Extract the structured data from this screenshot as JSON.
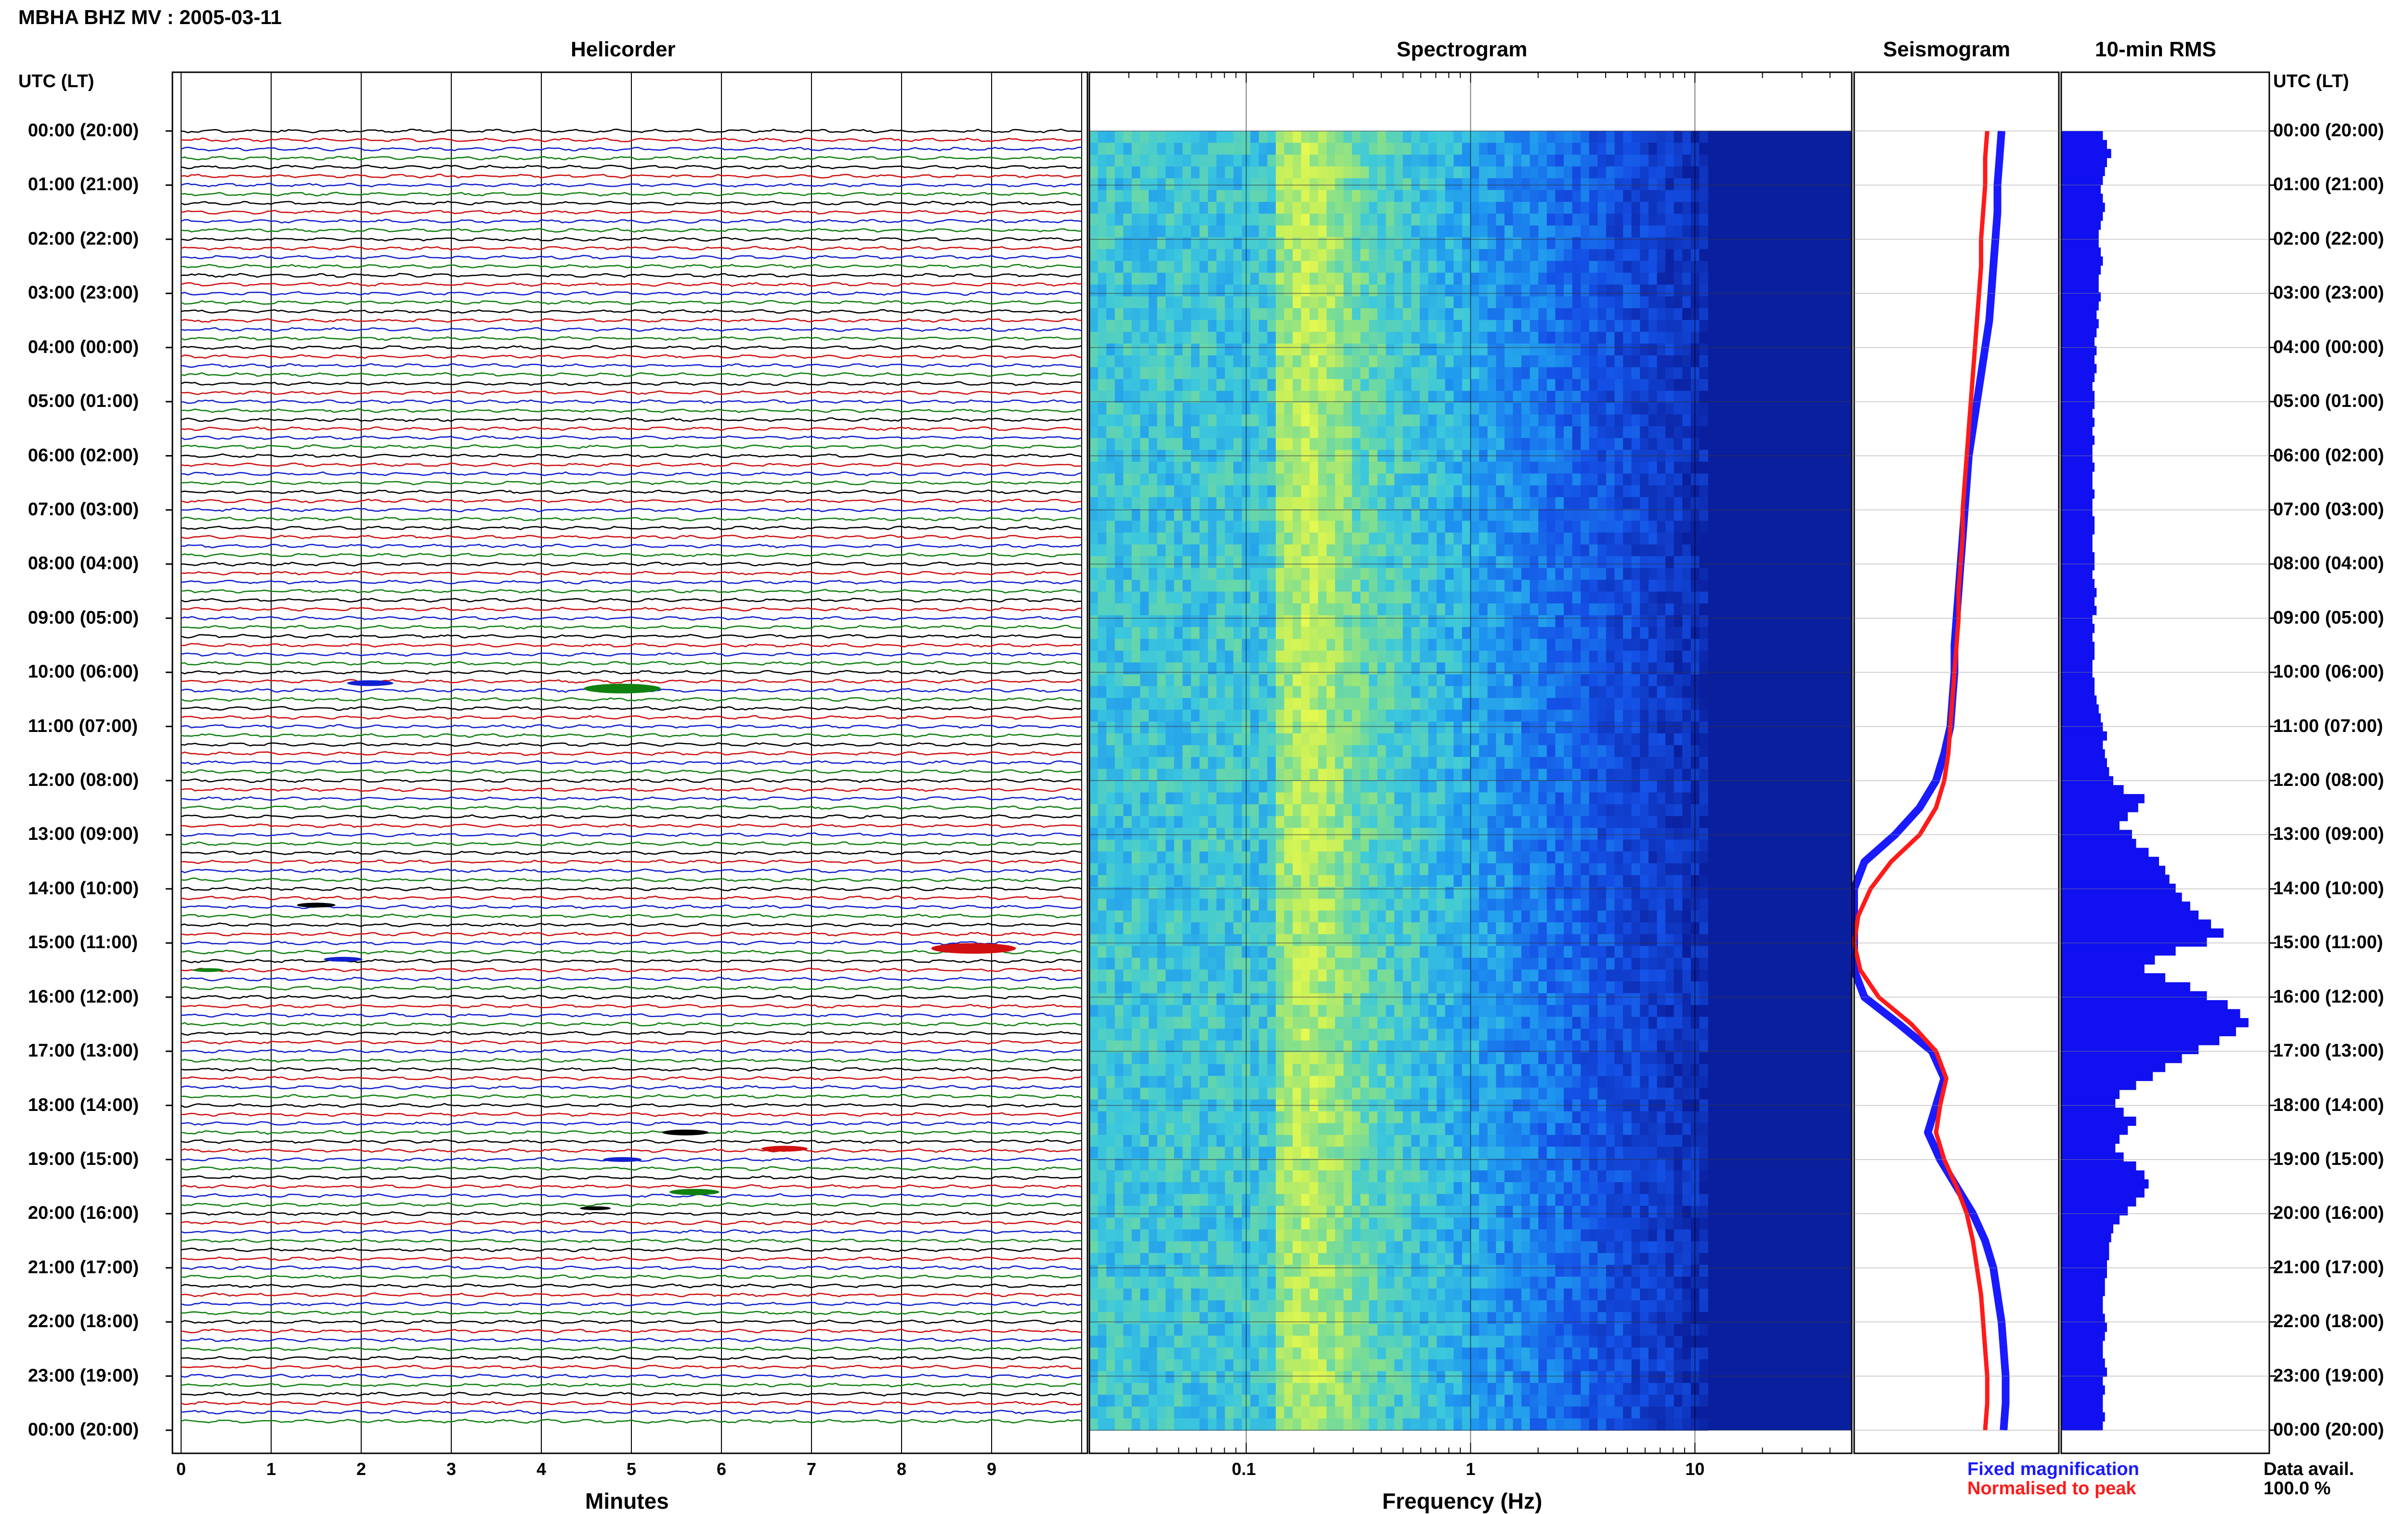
{
  "title": "MBHA BHZ MV : 2005-03-11",
  "panels": {
    "helicorder": "Helicorder",
    "spectrogram": "Spectrogram",
    "seismogram": "Seismogram",
    "rms": "10-min RMS"
  },
  "utc_header_left": "UTC (LT)",
  "utc_header_right": "UTC (LT)",
  "hour_labels": [
    "00:00 (20:00)",
    "01:00 (21:00)",
    "02:00 (22:00)",
    "03:00 (23:00)",
    "04:00 (00:00)",
    "05:00 (01:00)",
    "06:00 (02:00)",
    "07:00 (03:00)",
    "08:00 (04:00)",
    "09:00 (05:00)",
    "10:00 (06:00)",
    "11:00 (07:00)",
    "12:00 (08:00)",
    "13:00 (09:00)",
    "14:00 (10:00)",
    "15:00 (11:00)",
    "16:00 (12:00)",
    "17:00 (13:00)",
    "18:00 (14:00)",
    "19:00 (15:00)",
    "20:00 (16:00)",
    "21:00 (17:00)",
    "22:00 (18:00)",
    "23:00 (19:00)",
    "00:00 (20:00)"
  ],
  "helicorder_axis": {
    "label": "Minutes",
    "ticks": [
      "0",
      "1",
      "2",
      "3",
      "4",
      "5",
      "6",
      "7",
      "8",
      "9"
    ]
  },
  "spectrogram_axis": {
    "label": "Frequency (Hz)",
    "ticks": [
      "0.1",
      "1",
      "10"
    ]
  },
  "legend": {
    "fixed": "Fixed magnification",
    "normalised": "Normalised to peak",
    "fixed_color": "#1a1aff",
    "normalised_color": "#ff1a1a"
  },
  "data_avail": {
    "label": "Data avail.",
    "value": "100.0 %"
  },
  "colors": {
    "trace_cycle": [
      "#000000",
      "#d01010",
      "#1020d0",
      "#108010"
    ],
    "rms_fill": "#1010f0",
    "spectrogram_dark": "#0a1f9e"
  },
  "chart_data": [
    {
      "type": "heatmap",
      "name": "helicorder",
      "xlabel": "Minutes",
      "xlim": [
        0,
        10
      ],
      "ylim_hours": [
        0,
        24
      ],
      "rows_per_hour": 6,
      "events": [
        {
          "hour": 10.2,
          "minute": 2.1,
          "size": 1.2
        },
        {
          "hour": 10.3,
          "minute": 4.9,
          "size": 2.0
        },
        {
          "hour": 14.3,
          "minute": 1.5,
          "size": 1.0
        },
        {
          "hour": 15.1,
          "minute": 8.8,
          "size": 2.2
        },
        {
          "hour": 15.3,
          "minute": 1.8,
          "size": 1.0
        },
        {
          "hour": 15.5,
          "minute": 0.3,
          "size": 0.8
        },
        {
          "hour": 18.5,
          "minute": 5.6,
          "size": 1.2
        },
        {
          "hour": 18.8,
          "minute": 6.7,
          "size": 1.2
        },
        {
          "hour": 19.0,
          "minute": 4.9,
          "size": 1.0
        },
        {
          "hour": 19.6,
          "minute": 5.7,
          "size": 1.3
        },
        {
          "hour": 19.9,
          "minute": 4.6,
          "size": 0.8
        }
      ]
    },
    {
      "type": "heatmap",
      "name": "spectrogram",
      "xlabel": "Frequency (Hz)",
      "xscale": "log",
      "xlim": [
        0.02,
        50
      ],
      "ylim_hours": [
        0,
        24
      ]
    },
    {
      "type": "line",
      "name": "seismogram",
      "x": [
        0,
        0.5,
        1,
        1.5,
        2,
        2.5,
        3,
        3.5,
        4,
        4.5,
        5,
        5.5,
        6,
        6.5,
        7,
        7.5,
        8,
        8.5,
        9,
        9.5,
        10,
        10.5,
        11,
        11.5,
        12,
        12.5,
        13,
        13.5,
        14,
        14.5,
        15,
        15.5,
        16,
        16.5,
        17,
        17.5,
        18,
        18.5,
        19,
        19.5,
        20,
        20.5,
        21,
        21.5,
        22,
        22.5,
        23,
        23.5,
        24
      ],
      "series": [
        {
          "name": "Fixed magnification",
          "values": [
            0.72,
            0.71,
            0.7,
            0.7,
            0.69,
            0.68,
            0.67,
            0.66,
            0.64,
            0.62,
            0.6,
            0.58,
            0.56,
            0.55,
            0.54,
            0.53,
            0.52,
            0.51,
            0.5,
            0.49,
            0.49,
            0.48,
            0.47,
            0.44,
            0.4,
            0.32,
            0.2,
            0.05,
            0.0,
            0.0,
            0.0,
            0.0,
            0.05,
            0.22,
            0.38,
            0.44,
            0.4,
            0.36,
            0.42,
            0.5,
            0.58,
            0.64,
            0.68,
            0.7,
            0.72,
            0.73,
            0.74,
            0.74,
            0.73
          ]
        },
        {
          "name": "Normalised to peak",
          "values": [
            0.65,
            0.64,
            0.64,
            0.63,
            0.62,
            0.62,
            0.61,
            0.6,
            0.59,
            0.58,
            0.57,
            0.56,
            0.55,
            0.54,
            0.53,
            0.53,
            0.52,
            0.51,
            0.51,
            0.5,
            0.49,
            0.48,
            0.47,
            0.46,
            0.44,
            0.4,
            0.32,
            0.18,
            0.08,
            0.02,
            0.0,
            0.03,
            0.12,
            0.28,
            0.4,
            0.45,
            0.42,
            0.4,
            0.44,
            0.5,
            0.55,
            0.58,
            0.6,
            0.62,
            0.63,
            0.64,
            0.65,
            0.65,
            0.64
          ]
        }
      ]
    },
    {
      "type": "bar",
      "name": "10-min RMS",
      "values": [
        0.2,
        0.22,
        0.24,
        0.22,
        0.21,
        0.2,
        0.19,
        0.2,
        0.21,
        0.2,
        0.19,
        0.18,
        0.18,
        0.19,
        0.2,
        0.19,
        0.18,
        0.18,
        0.19,
        0.18,
        0.17,
        0.18,
        0.17,
        0.16,
        0.17,
        0.16,
        0.17,
        0.16,
        0.15,
        0.16,
        0.16,
        0.15,
        0.16,
        0.15,
        0.16,
        0.15,
        0.15,
        0.16,
        0.15,
        0.15,
        0.16,
        0.15,
        0.15,
        0.16,
        0.16,
        0.15,
        0.15,
        0.16,
        0.16,
        0.15,
        0.16,
        0.17,
        0.16,
        0.17,
        0.15,
        0.16,
        0.15,
        0.16,
        0.16,
        0.15,
        0.15,
        0.16,
        0.16,
        0.17,
        0.18,
        0.19,
        0.2,
        0.22,
        0.2,
        0.21,
        0.22,
        0.23,
        0.25,
        0.3,
        0.4,
        0.37,
        0.32,
        0.28,
        0.34,
        0.36,
        0.42,
        0.47,
        0.5,
        0.52,
        0.55,
        0.58,
        0.62,
        0.66,
        0.72,
        0.78,
        0.7,
        0.55,
        0.45,
        0.4,
        0.5,
        0.62,
        0.7,
        0.8,
        0.86,
        0.9,
        0.84,
        0.76,
        0.66,
        0.58,
        0.5,
        0.44,
        0.36,
        0.28,
        0.26,
        0.3,
        0.36,
        0.32,
        0.28,
        0.26,
        0.3,
        0.36,
        0.4,
        0.42,
        0.4,
        0.36,
        0.32,
        0.28,
        0.25,
        0.24,
        0.23,
        0.23,
        0.22,
        0.22,
        0.21,
        0.21,
        0.2,
        0.2,
        0.21,
        0.22,
        0.21,
        0.2,
        0.2,
        0.21,
        0.22,
        0.2,
        0.21,
        0.2,
        0.2,
        0.21,
        0.2
      ]
    }
  ]
}
